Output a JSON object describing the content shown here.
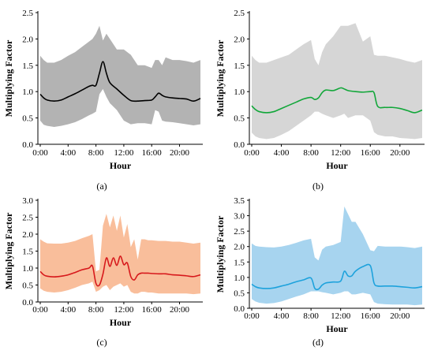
{
  "chart_data": [
    {
      "type": "area",
      "caption": "(a)",
      "xlabel": "Hour",
      "ylabel": "Multiplying Factor",
      "xlim": [
        0,
        23
      ],
      "ylim": [
        0,
        2.5
      ],
      "yticks": [
        0.0,
        0.5,
        1.0,
        1.5,
        2.0,
        2.5
      ],
      "ytick_labels": [
        "0.0",
        "0.5",
        "1.0",
        "1.5",
        "2.0",
        "2.5"
      ],
      "xticks": [
        0,
        4,
        8,
        12,
        16,
        20
      ],
      "xtick_labels": [
        "0:00",
        "4:00",
        "8:00",
        "12:00",
        "16:00",
        "20:00"
      ],
      "band_color": "#b3b3b3",
      "line_color": "#000000",
      "x": [
        0,
        0.5,
        1,
        2,
        3,
        4,
        5,
        6,
        7,
        7.5,
        8,
        8.5,
        9,
        9.5,
        10,
        11,
        12,
        13,
        14,
        15,
        16,
        16.5,
        17,
        17.5,
        18,
        19,
        20,
        21,
        22,
        23
      ],
      "upper": [
        1.68,
        1.6,
        1.55,
        1.55,
        1.6,
        1.68,
        1.75,
        1.85,
        1.95,
        2.0,
        2.1,
        2.25,
        1.97,
        2.1,
        2.0,
        1.8,
        1.8,
        1.7,
        1.5,
        1.5,
        1.45,
        1.6,
        1.6,
        1.5,
        1.65,
        1.6,
        1.6,
        1.58,
        1.55,
        1.6
      ],
      "mean": [
        0.95,
        0.88,
        0.84,
        0.82,
        0.84,
        0.9,
        0.96,
        1.03,
        1.1,
        1.12,
        1.12,
        1.35,
        1.57,
        1.35,
        1.17,
        1.05,
        0.93,
        0.83,
        0.82,
        0.83,
        0.84,
        0.9,
        0.97,
        0.93,
        0.9,
        0.88,
        0.87,
        0.86,
        0.82,
        0.87
      ],
      "lower": [
        0.45,
        0.37,
        0.35,
        0.33,
        0.35,
        0.38,
        0.42,
        0.48,
        0.55,
        0.58,
        0.62,
        0.95,
        1.05,
        0.9,
        0.78,
        0.65,
        0.45,
        0.38,
        0.4,
        0.4,
        0.38,
        0.65,
        0.62,
        0.45,
        0.43,
        0.42,
        0.4,
        0.38,
        0.36,
        0.38
      ]
    },
    {
      "type": "area",
      "caption": "(b)",
      "xlabel": "Hour",
      "ylabel": "Multiplying Factor",
      "xlim": [
        0,
        23
      ],
      "ylim": [
        0,
        2.5
      ],
      "yticks": [
        0.0,
        0.5,
        1.0,
        1.5,
        2.0,
        2.5
      ],
      "ytick_labels": [
        "0.0",
        "0.5",
        "1.0",
        "1.5",
        "2.0",
        "2.5"
      ],
      "xticks": [
        0,
        4,
        8,
        12,
        16,
        20
      ],
      "xtick_labels": [
        "0:00",
        "4:00",
        "8:00",
        "12:00",
        "16:00",
        "20:00"
      ],
      "band_color": "#d6d6d6",
      "line_color": "#12a73a",
      "x": [
        0,
        0.5,
        1,
        2,
        3,
        4,
        5,
        6,
        7,
        8,
        8.5,
        9,
        9.5,
        10,
        11,
        12,
        12.5,
        13,
        14,
        15,
        16,
        16.5,
        17,
        18,
        19,
        20,
        21,
        22,
        23
      ],
      "upper": [
        1.68,
        1.6,
        1.55,
        1.55,
        1.6,
        1.65,
        1.7,
        1.8,
        1.9,
        1.98,
        1.62,
        1.5,
        1.75,
        1.9,
        2.05,
        2.25,
        2.25,
        2.25,
        2.3,
        1.95,
        2.05,
        1.7,
        1.68,
        1.68,
        1.65,
        1.62,
        1.58,
        1.55,
        1.6
      ],
      "mean": [
        0.73,
        0.66,
        0.62,
        0.6,
        0.62,
        0.68,
        0.74,
        0.8,
        0.86,
        0.89,
        0.85,
        0.88,
        0.98,
        1.03,
        1.02,
        1.07,
        1.05,
        1.02,
        1.0,
        0.99,
        1.0,
        0.98,
        0.72,
        0.7,
        0.7,
        0.68,
        0.64,
        0.6,
        0.65
      ],
      "lower": [
        0.22,
        0.15,
        0.12,
        0.1,
        0.12,
        0.18,
        0.25,
        0.35,
        0.45,
        0.55,
        0.62,
        0.62,
        0.58,
        0.55,
        0.5,
        0.55,
        0.58,
        0.5,
        0.55,
        0.55,
        0.45,
        0.23,
        0.18,
        0.15,
        0.15,
        0.12,
        0.11,
        0.1,
        0.12
      ]
    },
    {
      "type": "area",
      "caption": "(c)",
      "xlabel": "Hour",
      "ylabel": "Multiplying Factor",
      "xlim": [
        0,
        23
      ],
      "ylim": [
        0,
        3.0
      ],
      "yticks": [
        0.0,
        0.5,
        1.0,
        1.5,
        2.0,
        2.5,
        3.0
      ],
      "ytick_labels": [
        "0.0",
        "0.5",
        "1.0",
        "1.5",
        "2.0",
        "2.5",
        "3.0"
      ],
      "xticks": [
        0,
        4,
        8,
        12,
        16,
        20
      ],
      "xtick_labels": [
        "0:00",
        "4:00",
        "8:00",
        "12:00",
        "16:00",
        "20:00"
      ],
      "band_color": "#f9be9b",
      "line_color": "#d7191c",
      "x": [
        0,
        0.5,
        1,
        2,
        3,
        4,
        5,
        6,
        7,
        7.5,
        8,
        8.5,
        9,
        9.5,
        10,
        10.5,
        11,
        11.5,
        12,
        12.5,
        13,
        13.5,
        14,
        14.5,
        15,
        15.5,
        16,
        17,
        18,
        19,
        20,
        21,
        22,
        23
      ],
      "upper": [
        1.85,
        1.78,
        1.73,
        1.72,
        1.72,
        1.75,
        1.8,
        1.88,
        1.95,
        2.0,
        0.9,
        0.95,
        2.25,
        2.6,
        2.2,
        2.55,
        2.1,
        2.55,
        1.9,
        2.3,
        1.62,
        1.85,
        1.25,
        1.85,
        1.85,
        1.82,
        1.82,
        1.8,
        1.8,
        1.78,
        1.78,
        1.75,
        1.72,
        1.75
      ],
      "mean": [
        0.9,
        0.8,
        0.76,
        0.74,
        0.76,
        0.8,
        0.87,
        0.95,
        1.0,
        1.06,
        0.55,
        0.5,
        0.82,
        1.3,
        1.05,
        1.3,
        1.08,
        1.35,
        1.1,
        1.15,
        0.75,
        0.65,
        0.8,
        0.85,
        0.85,
        0.85,
        0.84,
        0.83,
        0.83,
        0.8,
        0.79,
        0.77,
        0.75,
        0.8
      ],
      "lower": [
        0.4,
        0.33,
        0.3,
        0.28,
        0.3,
        0.35,
        0.42,
        0.5,
        0.55,
        0.6,
        0.3,
        0.35,
        0.45,
        0.5,
        0.35,
        0.45,
        0.5,
        0.55,
        0.45,
        0.5,
        0.3,
        0.25,
        0.25,
        0.3,
        0.3,
        0.28,
        0.28,
        0.25,
        0.25,
        0.25,
        0.25,
        0.25,
        0.23,
        0.25
      ]
    },
    {
      "type": "area",
      "caption": "(d)",
      "xlabel": "Hour",
      "ylabel": "Multiplying Factor",
      "xlim": [
        0,
        23
      ],
      "ylim": [
        0,
        3.5
      ],
      "yticks": [
        0.0,
        0.5,
        1.0,
        1.5,
        2.0,
        2.5,
        3.0,
        3.5
      ],
      "ytick_labels": [
        "0.0",
        "0.5",
        "1.0",
        "1.5",
        "2.0",
        "2.5",
        "3.0",
        "3.5"
      ],
      "xticks": [
        0,
        4,
        8,
        12,
        16,
        20
      ],
      "xtick_labels": [
        "0:00",
        "4:00",
        "8:00",
        "12:00",
        "16:00",
        "20:00"
      ],
      "band_color": "#a7d4ef",
      "line_color": "#1da2dc",
      "x": [
        0,
        0.5,
        1,
        2,
        3,
        4,
        5,
        6,
        7,
        8,
        8.5,
        9,
        9.5,
        10,
        11,
        12,
        12.5,
        13,
        13.5,
        14,
        15,
        16,
        16.5,
        17,
        18,
        19,
        20,
        21,
        22,
        23
      ],
      "upper": [
        2.1,
        2.02,
        2.0,
        1.98,
        1.97,
        2.0,
        2.05,
        2.12,
        2.2,
        2.25,
        1.65,
        1.55,
        1.9,
        2.0,
        2.05,
        2.15,
        3.3,
        3.05,
        2.8,
        2.8,
        2.4,
        1.88,
        1.85,
        2.02,
        2.0,
        2.0,
        2.0,
        1.98,
        1.95,
        2.0
      ],
      "mean": [
        0.78,
        0.7,
        0.66,
        0.64,
        0.66,
        0.72,
        0.78,
        0.86,
        0.92,
        0.98,
        0.65,
        0.62,
        0.75,
        0.82,
        0.85,
        0.88,
        1.2,
        1.05,
        1.05,
        1.2,
        1.35,
        1.38,
        0.82,
        0.72,
        0.72,
        0.72,
        0.7,
        0.68,
        0.66,
        0.7
      ],
      "lower": [
        0.3,
        0.22,
        0.18,
        0.15,
        0.17,
        0.22,
        0.3,
        0.38,
        0.45,
        0.55,
        0.55,
        0.55,
        0.52,
        0.5,
        0.45,
        0.5,
        0.55,
        0.55,
        0.45,
        0.45,
        0.5,
        0.45,
        0.2,
        0.15,
        0.13,
        0.12,
        0.12,
        0.12,
        0.1,
        0.12
      ]
    }
  ]
}
